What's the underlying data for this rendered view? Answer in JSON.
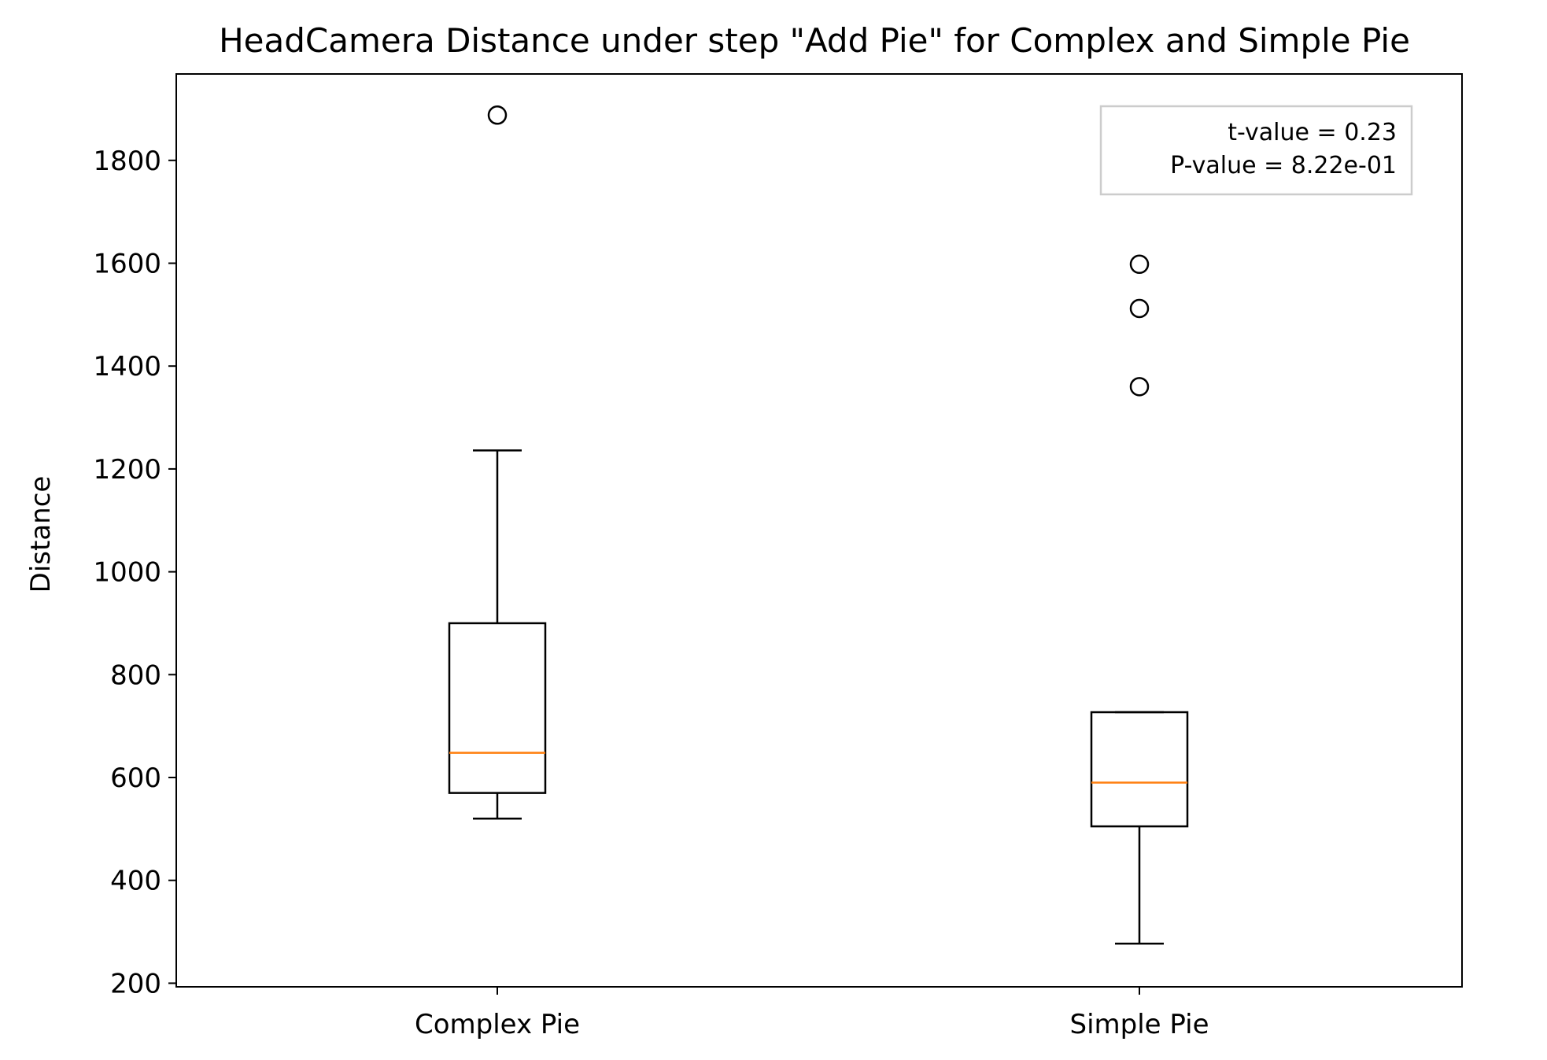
{
  "chart_data": {
    "type": "box",
    "title": "HeadCamera Distance under step \"Add Pie\" for Complex and Simple Pie",
    "xlabel": "",
    "ylabel": "Distance",
    "ylim": [
      193,
      1968
    ],
    "yticks": [
      200,
      400,
      600,
      800,
      1000,
      1200,
      1400,
      1600,
      1800
    ],
    "categories": [
      "Complex Pie",
      "Simple Pie"
    ],
    "boxes": [
      {
        "category": "Complex Pie",
        "whisker_low": 520,
        "q1": 570,
        "median": 648,
        "q3": 900,
        "whisker_high": 1236,
        "outliers": [
          1888
        ]
      },
      {
        "category": "Simple Pie",
        "whisker_low": 277,
        "q1": 505,
        "median": 590,
        "q3": 727,
        "whisker_high": 727,
        "outliers": [
          1360,
          1512,
          1598
        ]
      }
    ],
    "annotation": {
      "lines": [
        "t-value = 0.23",
        "P-value = 8.22e-01"
      ],
      "placement": "top-right"
    },
    "grid": false,
    "colors": {
      "box": "#000000",
      "median": "#ff7f0e",
      "annotation_border": "#cccccc"
    }
  }
}
